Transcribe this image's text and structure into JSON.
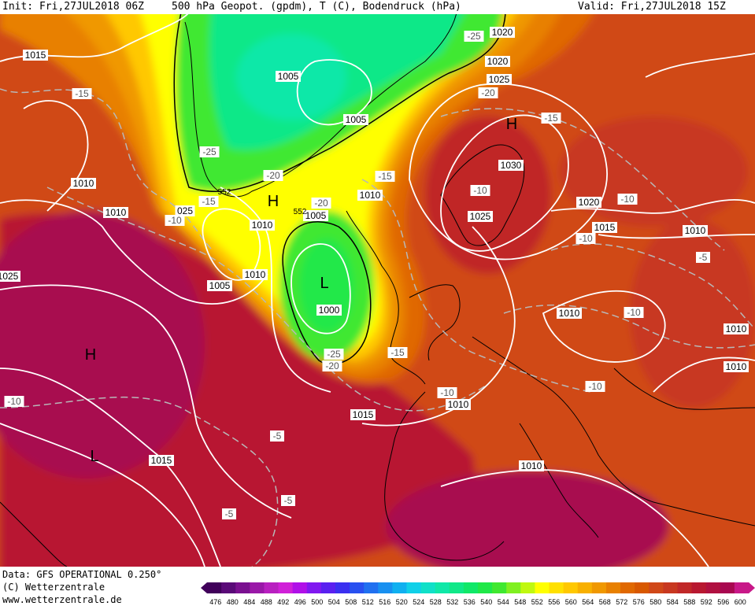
{
  "header": {
    "init": "Init: Fri,27JUL2018 06Z",
    "title": "500 hPa Geopot. (gpdm), T (C), Bodendruck (hPa)",
    "valid": "Valid: Fri,27JUL2018 15Z"
  },
  "footer": {
    "data": "Data: GFS OPERATIONAL 0.250°",
    "copyright": "(C) Wetterzentrale",
    "url": "www.wetterzentrale.de"
  },
  "colors": {
    "geopot_levels": [
      "#40005a",
      "#5a0a78",
      "#7a1090",
      "#9a18a8",
      "#b820c0",
      "#d020d8",
      "#b010e8",
      "#8018f0",
      "#5a20f0",
      "#3a30f0",
      "#2850f0",
      "#2070f0",
      "#1890f0",
      "#10b0f0",
      "#10d0e8",
      "#10e0c8",
      "#10e8a8",
      "#10e888",
      "#10e868",
      "#20e848",
      "#40e830",
      "#80f020",
      "#c0f810",
      "#ffff00",
      "#ffe000",
      "#ffc800",
      "#f8b000",
      "#f09800",
      "#e88000",
      "#e06800",
      "#d85800",
      "#d04818",
      "#c83820",
      "#c02828",
      "#b81830",
      "#b01040",
      "#a80850",
      "#c81888"
    ],
    "contour_pressure": "#ffffff",
    "contour_temperature": "#b8b8b8",
    "coastline": "#000000"
  },
  "scale_labels": [
    "476",
    "480",
    "484",
    "488",
    "492",
    "496",
    "500",
    "504",
    "508",
    "512",
    "516",
    "520",
    "524",
    "528",
    "532",
    "536",
    "540",
    "544",
    "548",
    "552",
    "556",
    "560",
    "564",
    "568",
    "572",
    "576",
    "580",
    "584",
    "588",
    "592",
    "596",
    "600"
  ],
  "pressure_centers": [
    {
      "text": "H",
      "kind": "high"
    },
    {
      "text": "H",
      "kind": "high"
    },
    {
      "text": "H",
      "kind": "high"
    },
    {
      "text": "L",
      "kind": "low"
    },
    {
      "text": "L",
      "kind": "low"
    }
  ],
  "isobar_labels": [
    "1015",
    "1005",
    "1005",
    "1010",
    "1010",
    "1010",
    "1005",
    "1010",
    "1005",
    "1000",
    "1015",
    "1020",
    "1025",
    "1030",
    "1025",
    "1020",
    "1015",
    "1010",
    "1010",
    "1010",
    "1010",
    "1020",
    "1010",
    "1015",
    "1025",
    "025",
    "1010",
    "1010",
    "1"
  ],
  "isotherm_labels": [
    "-25",
    "-15",
    "-25",
    "-20",
    "-15",
    "-10",
    "-20",
    "-15",
    "-20",
    "-10",
    "-15",
    "-25",
    "-20",
    "-15",
    "-10",
    "-10",
    "-10",
    "-10",
    "-10",
    "-5",
    "-5",
    "-5",
    "-5",
    "-10",
    "-10"
  ],
  "height_labels": [
    "552",
    "552"
  ]
}
